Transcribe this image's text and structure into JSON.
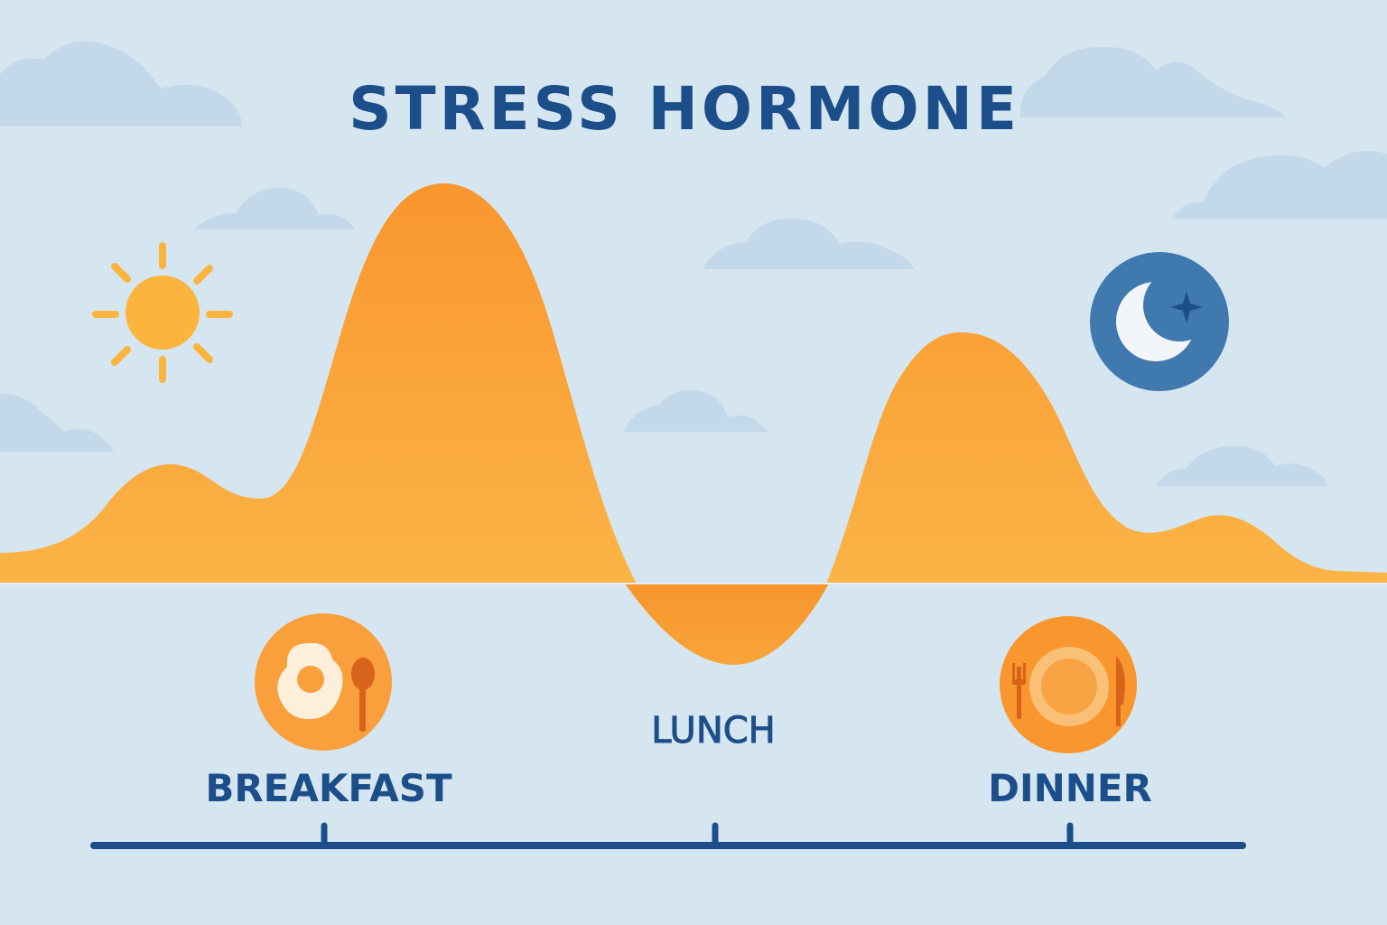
{
  "title": "STRESS HORMONE",
  "meals": {
    "breakfast": "BREAKFAST",
    "lunch": "LUNCH",
    "dinner": "DINNER"
  },
  "icons": {
    "day": "sun-icon",
    "night": "moon-icon",
    "breakfast": "egg-and-spoon-icon",
    "dinner": "plate-fork-knife-icon"
  },
  "colors": {
    "background": "#d6e6f1",
    "curve": "#f9a03c",
    "accent_text": "#1c4e8a",
    "moon_badge": "#3f79ad"
  }
}
